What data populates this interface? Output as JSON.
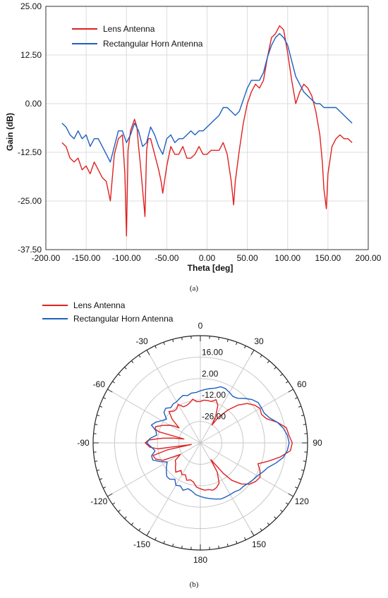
{
  "chart_data": [
    {
      "id": "a",
      "type": "line",
      "caption": "(a)",
      "title": "",
      "xlabel": "Theta [deg]",
      "ylabel": "Gain (dB)",
      "xlim": [
        -200,
        200
      ],
      "ylim": [
        -37.5,
        25
      ],
      "xticks": [
        -200,
        -150,
        -100,
        -50,
        0,
        50,
        100,
        150,
        200
      ],
      "xtick_labels": [
        "-200.00",
        "-150.00",
        "-100.00",
        "-50.00",
        "0.00",
        "50.00",
        "100.00",
        "150.00",
        "200.00"
      ],
      "yticks": [
        25,
        12.5,
        0,
        -12.5,
        -25,
        -37.5
      ],
      "ytick_labels": [
        "25.00",
        "12.50",
        "0.00",
        "-12.50",
        "-25.00",
        "-37.50"
      ],
      "grid": true,
      "legend_position": "top-left",
      "series": [
        {
          "name": "Lens Antenna",
          "color": "#e02020",
          "x": [
            -180,
            -175,
            -170,
            -165,
            -160,
            -155,
            -150,
            -145,
            -140,
            -135,
            -130,
            -125,
            -120,
            -115,
            -110,
            -105,
            -102,
            -100,
            -98,
            -95,
            -90,
            -87,
            -85,
            -83,
            -80,
            -77,
            -75,
            -73,
            -70,
            -65,
            -60,
            -57,
            -55,
            -50,
            -45,
            -40,
            -35,
            -30,
            -25,
            -20,
            -15,
            -10,
            -5,
            0,
            5,
            10,
            15,
            20,
            25,
            30,
            33,
            35,
            40,
            45,
            50,
            55,
            60,
            65,
            70,
            75,
            80,
            85,
            90,
            95,
            100,
            105,
            110,
            115,
            120,
            125,
            130,
            135,
            140,
            143,
            145,
            148,
            150,
            155,
            160,
            165,
            170,
            175,
            180
          ],
          "y": [
            -10,
            -11,
            -14,
            -15,
            -14,
            -17,
            -16,
            -18,
            -15,
            -17,
            -19,
            -20,
            -25,
            -13,
            -9,
            -8,
            -18,
            -34,
            -12,
            -7,
            -4,
            -6,
            -11,
            -15,
            -22,
            -29,
            -12,
            -9,
            -9,
            -13,
            -17,
            -20,
            -23,
            -16,
            -11,
            -13,
            -13,
            -11,
            -14,
            -14,
            -13,
            -11,
            -13,
            -13,
            -12,
            -12,
            -12,
            -10,
            -13,
            -20,
            -26,
            -20,
            -12,
            -5,
            0,
            3,
            5,
            4,
            6,
            12,
            17,
            18,
            20,
            19,
            13,
            6,
            0,
            3,
            5,
            4,
            2,
            -2,
            -8,
            -15,
            -22,
            -27,
            -18,
            -11,
            -9,
            -8,
            -9,
            -9,
            -10
          ]
        },
        {
          "name": "Rectangular Horn Antenna",
          "color": "#1f5fbf",
          "x": [
            -180,
            -175,
            -170,
            -165,
            -160,
            -155,
            -150,
            -145,
            -140,
            -135,
            -130,
            -125,
            -120,
            -115,
            -110,
            -105,
            -100,
            -95,
            -90,
            -85,
            -80,
            -75,
            -70,
            -65,
            -60,
            -55,
            -50,
            -45,
            -40,
            -35,
            -30,
            -25,
            -20,
            -15,
            -10,
            -5,
            0,
            5,
            10,
            15,
            20,
            25,
            30,
            35,
            40,
            45,
            50,
            55,
            60,
            65,
            70,
            75,
            80,
            85,
            90,
            95,
            100,
            105,
            110,
            115,
            120,
            125,
            130,
            135,
            140,
            145,
            150,
            155,
            160,
            165,
            170,
            175,
            180
          ],
          "y": [
            -5,
            -6,
            -8,
            -9,
            -7,
            -9,
            -8,
            -11,
            -9,
            -9,
            -11,
            -13,
            -15,
            -11,
            -7,
            -7,
            -10,
            -8,
            -5,
            -7,
            -11,
            -10,
            -6,
            -8,
            -11,
            -13,
            -9,
            -8,
            -10,
            -9,
            -9,
            -8,
            -7,
            -8,
            -7,
            -7,
            -6,
            -5,
            -4,
            -3,
            -1,
            -1,
            -2,
            -3,
            -2,
            1,
            4,
            6,
            6,
            6,
            8,
            12,
            15,
            17,
            18,
            17,
            15,
            11,
            7,
            5,
            3,
            2,
            1,
            0,
            0,
            -1,
            -1,
            -1,
            -1,
            -2,
            -3,
            -4,
            -5
          ]
        }
      ]
    },
    {
      "id": "b",
      "type": "polar",
      "caption": "(b)",
      "title": "",
      "rlim": [
        -40,
        30
      ],
      "rticks": [
        16,
        2,
        -12,
        -26
      ],
      "rtick_labels": [
        "16.00",
        "2.00",
        "-12.00",
        "-26.00"
      ],
      "angle_ticks": [
        0,
        30,
        60,
        90,
        120,
        150,
        180,
        -150,
        -120,
        -90,
        -60,
        -30
      ],
      "angle_tick_labels": [
        "0",
        "30",
        "60",
        "90",
        "120",
        "150",
        "180",
        "-150",
        "-120",
        "-90",
        "-60",
        "-30"
      ],
      "grid": true,
      "legend_position": "top-left",
      "series": [
        {
          "name": "Lens Antenna",
          "color": "#e02020",
          "ref_series": "a.0"
        },
        {
          "name": "Rectangular Horn Antenna",
          "color": "#1f5fbf",
          "ref_series": "a.1"
        }
      ]
    }
  ]
}
